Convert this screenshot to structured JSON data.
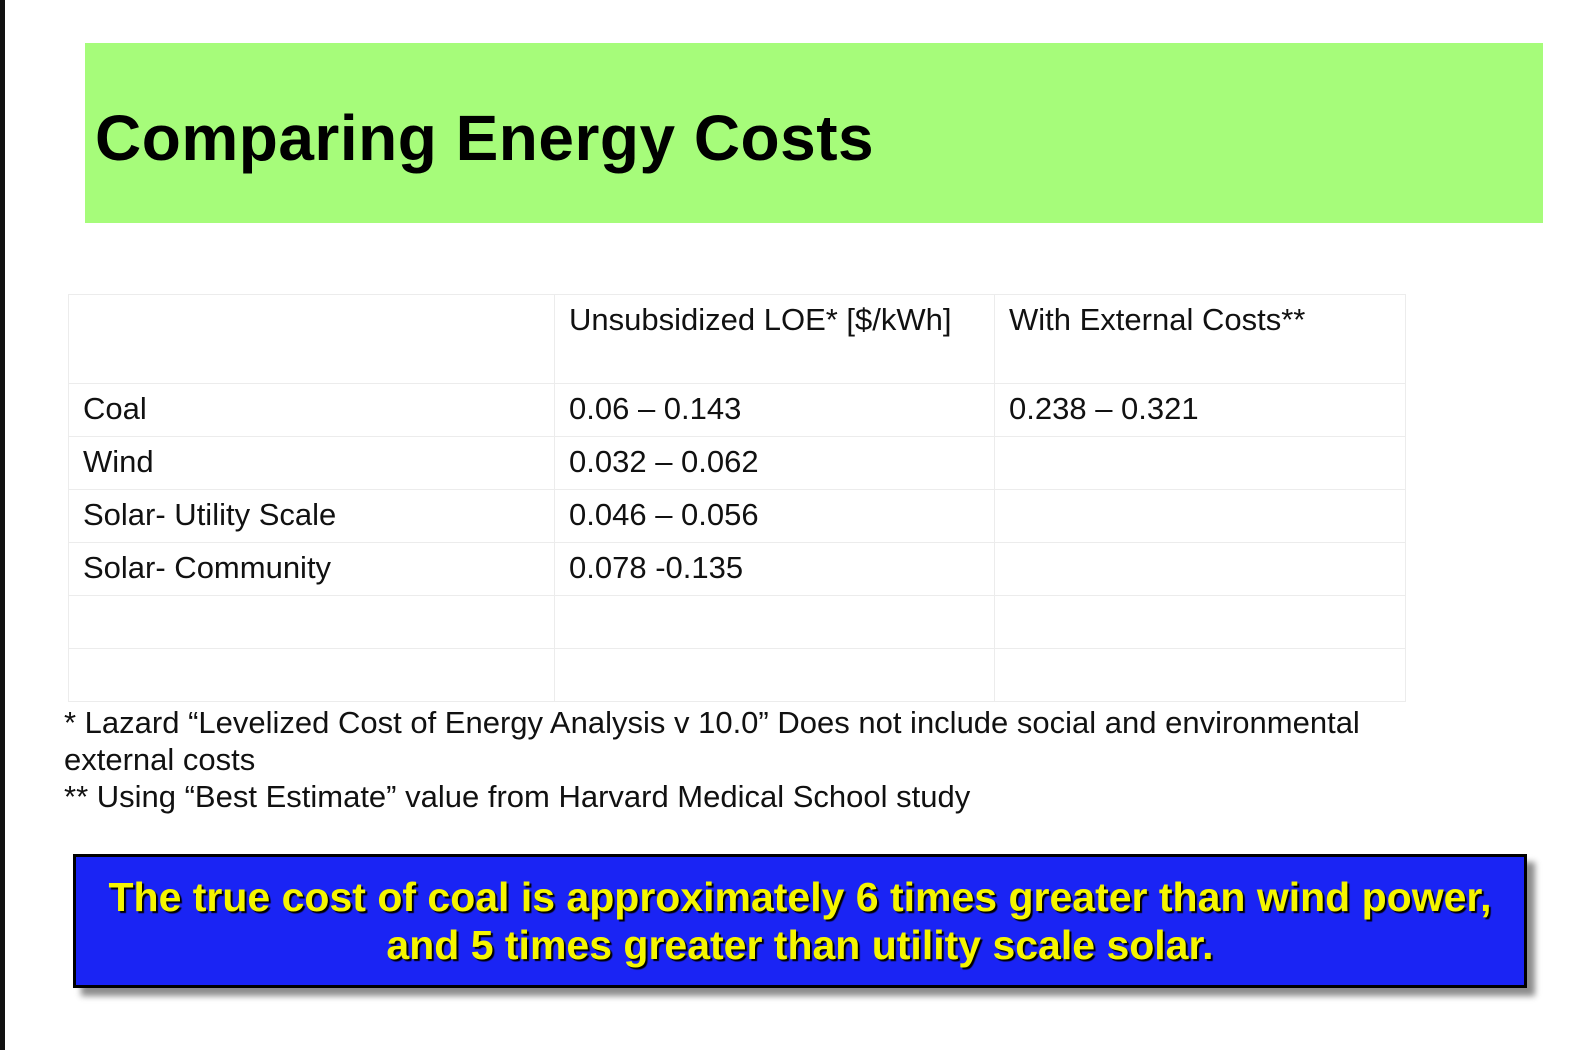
{
  "slide": {
    "title": "Comparing Energy Costs",
    "colors": {
      "title_band": "#a6fc7a",
      "callout_bg": "#1a24f4",
      "callout_text": "#f5f500"
    }
  },
  "table": {
    "headers": [
      "",
      "Unsubsidized LOE* [$/kWh]",
      "With External Costs**"
    ],
    "rows": [
      [
        "Coal",
        "0.06 – 0.143",
        "0.238 – 0.321"
      ],
      [
        "Wind",
        "0.032 – 0.062",
        ""
      ],
      [
        "Solar- Utility Scale",
        "0.046 – 0.056",
        ""
      ],
      [
        "Solar- Community",
        "0.078 -0.135",
        ""
      ],
      [
        "",
        "",
        ""
      ],
      [
        "",
        "",
        ""
      ]
    ]
  },
  "footnotes": [
    "* Lazard “Levelized Cost of Energy Analysis v 10.0”  Does not include social and environmental external costs",
    "** Using “Best Estimate” value from Harvard Medical School study"
  ],
  "callout": {
    "text": "The true cost of coal is approximately 6 times greater than wind power, and 5 times greater than utility scale solar."
  }
}
